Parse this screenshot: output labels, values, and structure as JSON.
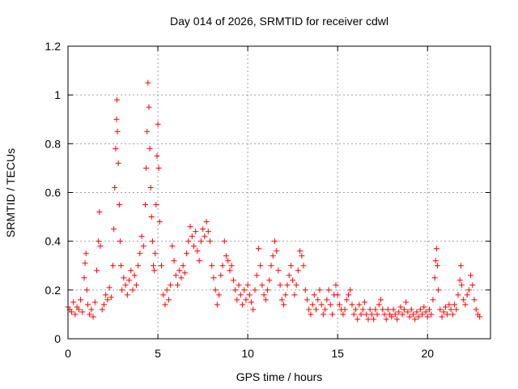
{
  "chart_data": {
    "type": "scatter",
    "title": "Day 014 of 2026, SRMTID for receiver cdwl",
    "xlabel": "GPS time / hours",
    "ylabel": "SRMTID / TECUs",
    "xlim": [
      0,
      23.5
    ],
    "ylim": [
      0,
      1.2
    ],
    "xticks": [
      0,
      5,
      10,
      15,
      20
    ],
    "xtick_labels": [
      "0",
      "5",
      "10",
      "15",
      "20"
    ],
    "yticks": [
      0,
      0.2,
      0.4,
      0.6,
      0.8,
      1.0,
      1.2
    ],
    "ytick_labels": [
      "0",
      "0.2",
      "0.4",
      "0.6",
      "0.8",
      "1",
      "1.2"
    ],
    "grid": true,
    "marker": "+",
    "series": [
      {
        "name": "SRMTID",
        "color": "#ff0000",
        "points": [
          [
            0.0,
            0.13
          ],
          [
            0.1,
            0.12
          ],
          [
            0.2,
            0.11
          ],
          [
            0.3,
            0.15
          ],
          [
            0.4,
            0.1
          ],
          [
            0.5,
            0.13
          ],
          [
            0.6,
            0.12
          ],
          [
            0.7,
            0.16
          ],
          [
            0.8,
            0.11
          ],
          [
            0.9,
            0.25
          ],
          [
            0.95,
            0.31
          ],
          [
            1.0,
            0.35
          ],
          [
            1.05,
            0.2
          ],
          [
            1.1,
            0.14
          ],
          [
            1.2,
            0.1
          ],
          [
            1.3,
            0.12
          ],
          [
            1.4,
            0.09
          ],
          [
            1.5,
            0.15
          ],
          [
            1.6,
            0.28
          ],
          [
            1.7,
            0.4
          ],
          [
            1.75,
            0.52
          ],
          [
            1.8,
            0.38
          ],
          [
            1.9,
            0.12
          ],
          [
            2.0,
            0.14
          ],
          [
            2.1,
            0.18
          ],
          [
            2.2,
            0.16
          ],
          [
            2.3,
            0.21
          ],
          [
            2.4,
            0.17
          ],
          [
            2.5,
            0.3
          ],
          [
            2.55,
            0.45
          ],
          [
            2.6,
            0.62
          ],
          [
            2.65,
            0.78
          ],
          [
            2.7,
            0.9
          ],
          [
            2.72,
            0.98
          ],
          [
            2.75,
            0.85
          ],
          [
            2.8,
            0.72
          ],
          [
            2.85,
            0.55
          ],
          [
            2.9,
            0.4
          ],
          [
            2.95,
            0.3
          ],
          [
            3.0,
            0.2
          ],
          [
            3.1,
            0.25
          ],
          [
            3.2,
            0.22
          ],
          [
            3.3,
            0.18
          ],
          [
            3.4,
            0.24
          ],
          [
            3.5,
            0.28
          ],
          [
            3.6,
            0.2
          ],
          [
            3.7,
            0.26
          ],
          [
            3.8,
            0.22
          ],
          [
            3.9,
            0.3
          ],
          [
            4.0,
            0.35
          ],
          [
            4.1,
            0.42
          ],
          [
            4.2,
            0.38
          ],
          [
            4.3,
            0.55
          ],
          [
            4.35,
            0.7
          ],
          [
            4.4,
            0.85
          ],
          [
            4.45,
            1.05
          ],
          [
            4.5,
            0.95
          ],
          [
            4.55,
            0.78
          ],
          [
            4.6,
            0.62
          ],
          [
            4.65,
            0.5
          ],
          [
            4.7,
            0.4
          ],
          [
            4.75,
            0.3
          ],
          [
            4.8,
            0.28
          ],
          [
            4.85,
            0.35
          ],
          [
            4.9,
            0.55
          ],
          [
            4.95,
            0.75
          ],
          [
            5.0,
            0.88
          ],
          [
            5.05,
            0.7
          ],
          [
            5.1,
            0.48
          ],
          [
            5.2,
            0.3
          ],
          [
            5.3,
            0.18
          ],
          [
            5.4,
            0.14
          ],
          [
            5.5,
            0.2
          ],
          [
            5.6,
            0.16
          ],
          [
            5.7,
            0.22
          ],
          [
            5.8,
            0.38
          ],
          [
            5.9,
            0.32
          ],
          [
            6.0,
            0.26
          ],
          [
            6.1,
            0.22
          ],
          [
            6.2,
            0.28
          ],
          [
            6.3,
            0.25
          ],
          [
            6.4,
            0.3
          ],
          [
            6.5,
            0.27
          ],
          [
            6.6,
            0.35
          ],
          [
            6.7,
            0.4
          ],
          [
            6.8,
            0.46
          ],
          [
            6.9,
            0.42
          ],
          [
            7.0,
            0.38
          ],
          [
            7.1,
            0.44
          ],
          [
            7.2,
            0.36
          ],
          [
            7.3,
            0.32
          ],
          [
            7.4,
            0.4
          ],
          [
            7.5,
            0.45
          ],
          [
            7.6,
            0.42
          ],
          [
            7.7,
            0.48
          ],
          [
            7.8,
            0.44
          ],
          [
            7.9,
            0.4
          ],
          [
            8.0,
            0.3
          ],
          [
            8.1,
            0.25
          ],
          [
            8.2,
            0.2
          ],
          [
            8.3,
            0.14
          ],
          [
            8.4,
            0.18
          ],
          [
            8.5,
            0.26
          ],
          [
            8.6,
            0.3
          ],
          [
            8.7,
            0.4
          ],
          [
            8.8,
            0.34
          ],
          [
            8.9,
            0.32
          ],
          [
            9.0,
            0.28
          ],
          [
            9.1,
            0.3
          ],
          [
            9.2,
            0.24
          ],
          [
            9.3,
            0.2
          ],
          [
            9.4,
            0.16
          ],
          [
            9.5,
            0.22
          ],
          [
            9.6,
            0.18
          ],
          [
            9.7,
            0.14
          ],
          [
            9.8,
            0.2
          ],
          [
            9.9,
            0.16
          ],
          [
            10.0,
            0.22
          ],
          [
            10.1,
            0.18
          ],
          [
            10.2,
            0.15
          ],
          [
            10.3,
            0.12
          ],
          [
            10.4,
            0.2
          ],
          [
            10.5,
            0.26
          ],
          [
            10.6,
            0.37
          ],
          [
            10.7,
            0.3
          ],
          [
            10.8,
            0.22
          ],
          [
            10.9,
            0.18
          ],
          [
            11.0,
            0.16
          ],
          [
            11.1,
            0.2
          ],
          [
            11.2,
            0.24
          ],
          [
            11.3,
            0.3
          ],
          [
            11.4,
            0.34
          ],
          [
            11.5,
            0.4
          ],
          [
            11.6,
            0.36
          ],
          [
            11.7,
            0.28
          ],
          [
            11.8,
            0.22
          ],
          [
            11.9,
            0.16
          ],
          [
            12.0,
            0.14
          ],
          [
            12.1,
            0.18
          ],
          [
            12.2,
            0.22
          ],
          [
            12.3,
            0.26
          ],
          [
            12.4,
            0.3
          ],
          [
            12.5,
            0.24
          ],
          [
            12.6,
            0.18
          ],
          [
            12.7,
            0.22
          ],
          [
            12.8,
            0.28
          ],
          [
            12.9,
            0.36
          ],
          [
            13.0,
            0.34
          ],
          [
            13.1,
            0.3
          ],
          [
            13.2,
            0.2
          ],
          [
            13.3,
            0.16
          ],
          [
            13.4,
            0.12
          ],
          [
            13.5,
            0.1
          ],
          [
            13.6,
            0.14
          ],
          [
            13.7,
            0.18
          ],
          [
            13.8,
            0.12
          ],
          [
            13.9,
            0.16
          ],
          [
            14.0,
            0.2
          ],
          [
            14.1,
            0.14
          ],
          [
            14.2,
            0.1
          ],
          [
            14.3,
            0.12
          ],
          [
            14.4,
            0.16
          ],
          [
            14.5,
            0.2
          ],
          [
            14.6,
            0.14
          ],
          [
            14.7,
            0.1
          ],
          [
            14.8,
            0.18
          ],
          [
            14.9,
            0.22
          ],
          [
            15.0,
            0.18
          ],
          [
            15.1,
            0.14
          ],
          [
            15.2,
            0.12
          ],
          [
            15.3,
            0.1
          ],
          [
            15.4,
            0.12
          ],
          [
            15.5,
            0.16
          ],
          [
            15.6,
            0.18
          ],
          [
            15.7,
            0.2
          ],
          [
            15.8,
            0.14
          ],
          [
            15.9,
            0.1
          ],
          [
            16.0,
            0.12
          ],
          [
            16.1,
            0.08
          ],
          [
            16.2,
            0.14
          ],
          [
            16.3,
            0.1
          ],
          [
            16.4,
            0.12
          ],
          [
            16.5,
            0.15
          ],
          [
            16.6,
            0.1
          ],
          [
            16.7,
            0.08
          ],
          [
            16.8,
            0.12
          ],
          [
            16.9,
            0.1
          ],
          [
            17.0,
            0.08
          ],
          [
            17.1,
            0.12
          ],
          [
            17.2,
            0.1
          ],
          [
            17.3,
            0.14
          ],
          [
            17.4,
            0.16
          ],
          [
            17.5,
            0.12
          ],
          [
            17.6,
            0.1
          ],
          [
            17.7,
            0.08
          ],
          [
            17.8,
            0.12
          ],
          [
            17.9,
            0.1
          ],
          [
            18.0,
            0.09
          ],
          [
            18.1,
            0.12
          ],
          [
            18.2,
            0.1
          ],
          [
            18.3,
            0.08
          ],
          [
            18.4,
            0.11
          ],
          [
            18.5,
            0.13
          ],
          [
            18.6,
            0.1
          ],
          [
            18.7,
            0.12
          ],
          [
            18.8,
            0.15
          ],
          [
            18.9,
            0.11
          ],
          [
            19.0,
            0.09
          ],
          [
            19.1,
            0.12
          ],
          [
            19.2,
            0.1
          ],
          [
            19.3,
            0.08
          ],
          [
            19.4,
            0.11
          ],
          [
            19.5,
            0.09
          ],
          [
            19.6,
            0.12
          ],
          [
            19.7,
            0.1
          ],
          [
            19.8,
            0.13
          ],
          [
            19.9,
            0.11
          ],
          [
            20.0,
            0.09
          ],
          [
            20.1,
            0.12
          ],
          [
            20.2,
            0.1
          ],
          [
            20.3,
            0.16
          ],
          [
            20.4,
            0.25
          ],
          [
            20.45,
            0.32
          ],
          [
            20.5,
            0.37
          ],
          [
            20.55,
            0.3
          ],
          [
            20.6,
            0.2
          ],
          [
            20.7,
            0.12
          ],
          [
            20.8,
            0.09
          ],
          [
            20.9,
            0.11
          ],
          [
            21.0,
            0.13
          ],
          [
            21.1,
            0.1
          ],
          [
            21.2,
            0.14
          ],
          [
            21.3,
            0.12
          ],
          [
            21.4,
            0.1
          ],
          [
            21.5,
            0.14
          ],
          [
            21.6,
            0.12
          ],
          [
            21.7,
            0.18
          ],
          [
            21.8,
            0.24
          ],
          [
            21.85,
            0.3
          ],
          [
            21.9,
            0.22
          ],
          [
            22.0,
            0.16
          ],
          [
            22.1,
            0.14
          ],
          [
            22.2,
            0.18
          ],
          [
            22.3,
            0.2
          ],
          [
            22.4,
            0.26
          ],
          [
            22.5,
            0.22
          ],
          [
            22.6,
            0.16
          ],
          [
            22.7,
            0.12
          ],
          [
            22.8,
            0.1
          ],
          [
            22.9,
            0.09
          ]
        ]
      }
    ]
  }
}
